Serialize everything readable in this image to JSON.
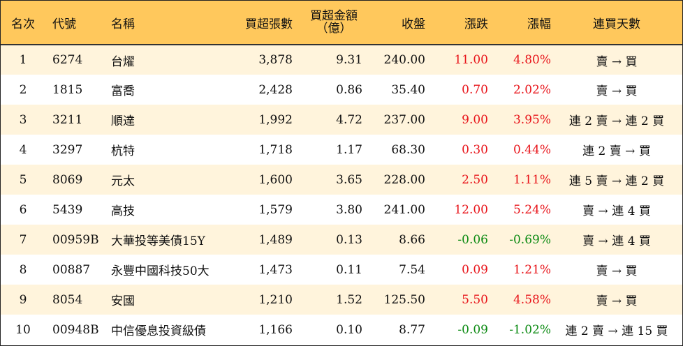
{
  "table": {
    "headers": {
      "rank": "名次",
      "code": "代號",
      "name": "名稱",
      "net_buy_lots": "買超張數",
      "net_buy_amount_line1": "買超金額",
      "net_buy_amount_line2": "（億）",
      "close": "收盤",
      "change": "漲跌",
      "change_pct": "漲幅",
      "streak": "連買天數"
    },
    "colors": {
      "header_bg": "#FFC85C",
      "row_alt_bg": "#FFF4DC",
      "up": "#E8141A",
      "down": "#0B8A12"
    },
    "rows": [
      {
        "rank": "1",
        "code": "6274",
        "name": "台燿",
        "lots": "3,878",
        "amount": "9.31",
        "close": "240.00",
        "change": "11.00",
        "pct": "4.80%",
        "streak": "賣 → 買",
        "dir": "up"
      },
      {
        "rank": "2",
        "code": "1815",
        "name": "富喬",
        "lots": "2,428",
        "amount": "0.86",
        "close": "35.40",
        "change": "0.70",
        "pct": "2.02%",
        "streak": "賣 → 買",
        "dir": "up"
      },
      {
        "rank": "3",
        "code": "3211",
        "name": "順達",
        "lots": "1,992",
        "amount": "4.72",
        "close": "237.00",
        "change": "9.00",
        "pct": "3.95%",
        "streak": "連 2 賣 → 連 2 買",
        "dir": "up"
      },
      {
        "rank": "4",
        "code": "3297",
        "name": "杭特",
        "lots": "1,718",
        "amount": "1.17",
        "close": "68.30",
        "change": "0.30",
        "pct": "0.44%",
        "streak": "連 2 賣 → 買",
        "dir": "up"
      },
      {
        "rank": "5",
        "code": "8069",
        "name": "元太",
        "lots": "1,600",
        "amount": "3.65",
        "close": "228.00",
        "change": "2.50",
        "pct": "1.11%",
        "streak": "連 5 賣 → 連 2 買",
        "dir": "up"
      },
      {
        "rank": "6",
        "code": "5439",
        "name": "高技",
        "lots": "1,579",
        "amount": "3.80",
        "close": "241.00",
        "change": "12.00",
        "pct": "5.24%",
        "streak": "賣 → 連 4 買",
        "dir": "up"
      },
      {
        "rank": "7",
        "code": "00959B",
        "name": "大華投等美債15Y",
        "lots": "1,489",
        "amount": "0.13",
        "close": "8.66",
        "change": "-0.06",
        "pct": "-0.69%",
        "streak": "賣 → 連 4 買",
        "dir": "down"
      },
      {
        "rank": "8",
        "code": "00887",
        "name": "永豐中國科技50大",
        "lots": "1,473",
        "amount": "0.11",
        "close": "7.54",
        "change": "0.09",
        "pct": "1.21%",
        "streak": "賣 → 買",
        "dir": "up"
      },
      {
        "rank": "9",
        "code": "8054",
        "name": "安國",
        "lots": "1,210",
        "amount": "1.52",
        "close": "125.50",
        "change": "5.50",
        "pct": "4.58%",
        "streak": "賣 → 買",
        "dir": "up"
      },
      {
        "rank": "10",
        "code": "00948B",
        "name": "中信優息投資級債",
        "lots": "1,166",
        "amount": "0.10",
        "close": "8.77",
        "change": "-0.09",
        "pct": "-1.02%",
        "streak": "連 2 賣 → 連 15 買",
        "dir": "down"
      }
    ]
  }
}
